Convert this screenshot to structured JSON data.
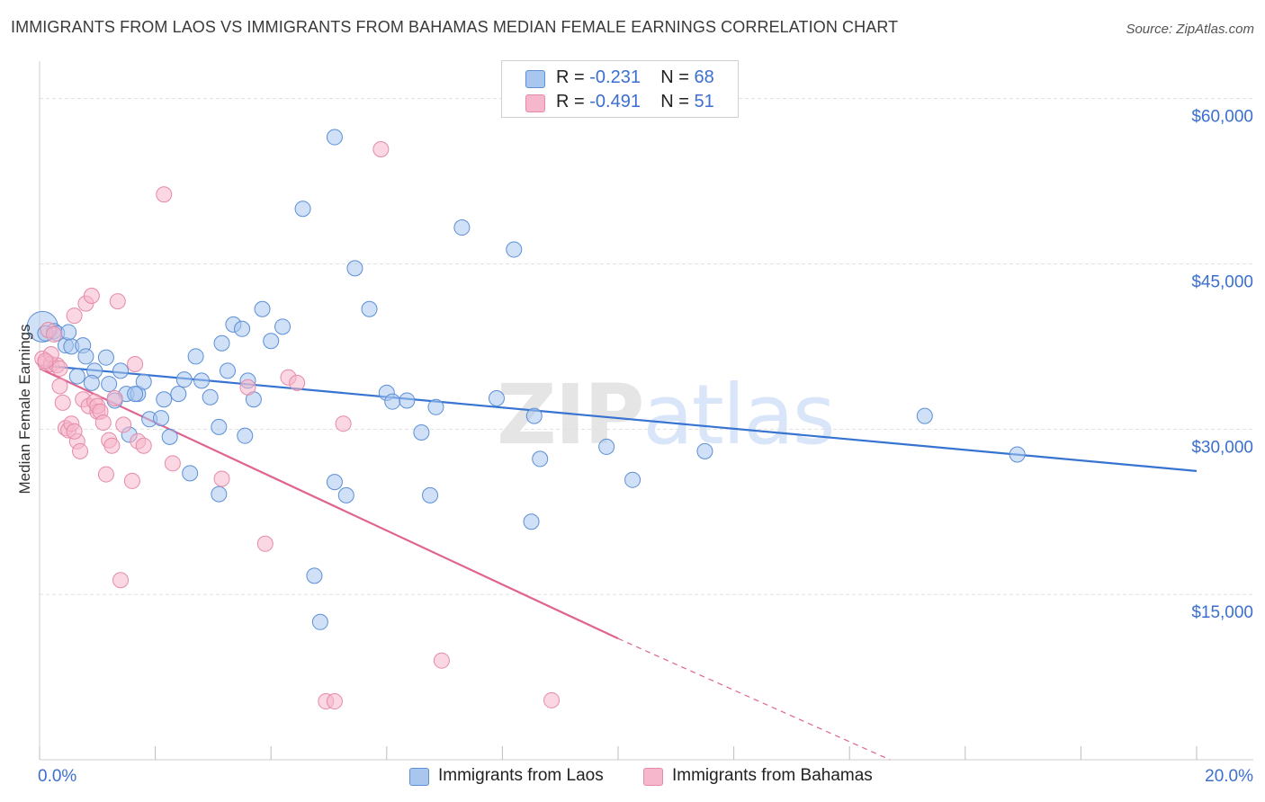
{
  "title": "IMMIGRANTS FROM LAOS VS IMMIGRANTS FROM BAHAMAS MEDIAN FEMALE EARNINGS CORRELATION CHART",
  "source": "Source: ZipAtlas.com",
  "watermark": {
    "zip": "ZIP",
    "atlas": "atlas"
  },
  "legend": {
    "rows": [
      {
        "r_label": "R = ",
        "r_value": "-0.231",
        "n_label": "N = ",
        "n_value": "68"
      },
      {
        "r_label": "R = ",
        "r_value": "-0.491",
        "n_label": "N = ",
        "n_value": "51"
      }
    ]
  },
  "bottom_legend": [
    "Immigrants from Laos",
    "Immigrants from Bahamas"
  ],
  "colors": {
    "laos_fill": "#a9c6ef",
    "laos_stroke": "#5b8fd6",
    "laos_line": "#3773d1",
    "bahamas_fill": "#f6b6cb",
    "bahamas_stroke": "#e58aa8",
    "bahamas_line": "#e0648f",
    "tick_text": "#3b6fcf",
    "grid": "#e1e1e1"
  },
  "chart_data": {
    "type": "scatter",
    "title": "IMMIGRANTS FROM LAOS VS IMMIGRANTS FROM BAHAMAS MEDIAN FEMALE EARNINGS CORRELATION CHART",
    "xlabel": "",
    "ylabel": "Median Female Earnings",
    "xlim": [
      0,
      20
    ],
    "ylim": [
      0,
      62500
    ],
    "x_tick_labels": [
      "0.0%",
      "20.0%"
    ],
    "y_ticks": [
      15000,
      30000,
      45000,
      60000
    ],
    "y_tick_labels": [
      "$15,000",
      "$30,000",
      "$45,000",
      "$60,000"
    ],
    "grid": true,
    "legend_position": "top-center",
    "series": [
      {
        "name": "Immigrants from Laos",
        "points": [
          [
            0.05,
            39300
          ],
          [
            0.25,
            38900
          ],
          [
            0.3,
            38700
          ],
          [
            0.45,
            37600
          ],
          [
            0.55,
            37500
          ],
          [
            0.75,
            37600
          ],
          [
            0.8,
            36600
          ],
          [
            0.65,
            34800
          ],
          [
            0.95,
            35300
          ],
          [
            1.15,
            36500
          ],
          [
            0.9,
            34200
          ],
          [
            1.2,
            34100
          ],
          [
            1.4,
            35300
          ],
          [
            1.5,
            33200
          ],
          [
            1.7,
            33200
          ],
          [
            1.8,
            34300
          ],
          [
            1.3,
            32600
          ],
          [
            1.65,
            33200
          ],
          [
            1.55,
            29500
          ],
          [
            1.9,
            30900
          ],
          [
            2.1,
            31000
          ],
          [
            2.15,
            32700
          ],
          [
            2.25,
            29300
          ],
          [
            2.4,
            33200
          ],
          [
            2.5,
            34500
          ],
          [
            2.6,
            26000
          ],
          [
            2.7,
            36600
          ],
          [
            2.8,
            34400
          ],
          [
            2.95,
            32900
          ],
          [
            3.1,
            30200
          ],
          [
            3.1,
            24100
          ],
          [
            3.15,
            37800
          ],
          [
            3.25,
            35300
          ],
          [
            3.35,
            39500
          ],
          [
            3.5,
            39100
          ],
          [
            3.55,
            29400
          ],
          [
            3.6,
            34400
          ],
          [
            3.7,
            32700
          ],
          [
            3.85,
            40900
          ],
          [
            4.0,
            38000
          ],
          [
            4.2,
            39300
          ],
          [
            4.55,
            50000
          ],
          [
            4.75,
            16700
          ],
          [
            4.85,
            12500
          ],
          [
            5.1,
            56500
          ],
          [
            5.1,
            25200
          ],
          [
            5.3,
            24000
          ],
          [
            5.45,
            44600
          ],
          [
            5.7,
            40900
          ],
          [
            6.0,
            33300
          ],
          [
            6.1,
            32500
          ],
          [
            6.35,
            32600
          ],
          [
            6.6,
            29700
          ],
          [
            6.75,
            24000
          ],
          [
            6.85,
            32000
          ],
          [
            7.3,
            48300
          ],
          [
            7.9,
            32800
          ],
          [
            8.2,
            46300
          ],
          [
            8.5,
            21600
          ],
          [
            8.55,
            31200
          ],
          [
            8.65,
            27300
          ],
          [
            9.8,
            28400
          ],
          [
            10.25,
            25400
          ],
          [
            11.5,
            28000
          ],
          [
            15.3,
            31200
          ],
          [
            16.9,
            27700
          ],
          [
            0.1,
            38700
          ],
          [
            0.5,
            38800
          ]
        ],
        "trend": {
          "x": [
            0,
            20
          ],
          "y": [
            35800,
            26200
          ]
        }
      },
      {
        "name": "Immigrants from Bahamas",
        "points": [
          [
            0.05,
            36400
          ],
          [
            0.1,
            36000
          ],
          [
            0.15,
            39000
          ],
          [
            0.2,
            35900
          ],
          [
            0.25,
            38600
          ],
          [
            0.3,
            35800
          ],
          [
            0.35,
            35500
          ],
          [
            0.35,
            33900
          ],
          [
            0.4,
            32400
          ],
          [
            0.45,
            30100
          ],
          [
            0.5,
            29900
          ],
          [
            0.55,
            30500
          ],
          [
            0.6,
            40300
          ],
          [
            0.65,
            28900
          ],
          [
            0.7,
            28000
          ],
          [
            0.75,
            32700
          ],
          [
            0.8,
            41400
          ],
          [
            0.85,
            32100
          ],
          [
            0.9,
            42100
          ],
          [
            0.95,
            32500
          ],
          [
            1.0,
            31600
          ],
          [
            1.0,
            32100
          ],
          [
            1.05,
            31600
          ],
          [
            1.1,
            30600
          ],
          [
            1.15,
            25900
          ],
          [
            1.2,
            29000
          ],
          [
            1.25,
            28500
          ],
          [
            1.3,
            32800
          ],
          [
            1.35,
            41600
          ],
          [
            1.4,
            16300
          ],
          [
            1.45,
            30400
          ],
          [
            1.6,
            25300
          ],
          [
            1.65,
            35900
          ],
          [
            1.7,
            28900
          ],
          [
            1.8,
            28500
          ],
          [
            2.15,
            51300
          ],
          [
            2.3,
            26900
          ],
          [
            3.15,
            25500
          ],
          [
            3.6,
            33800
          ],
          [
            3.9,
            19600
          ],
          [
            4.3,
            34700
          ],
          [
            4.45,
            34200
          ],
          [
            4.95,
            5300
          ],
          [
            5.1,
            5300
          ],
          [
            5.25,
            30500
          ],
          [
            5.9,
            55400
          ],
          [
            6.95,
            9000
          ],
          [
            8.85,
            5400
          ],
          [
            0.2,
            36800
          ],
          [
            0.1,
            36200
          ],
          [
            0.6,
            29800
          ]
        ],
        "trend": {
          "x": [
            0,
            10
          ],
          "y": [
            35500,
            11000
          ]
        },
        "trend_dashed_extension": {
          "x": [
            10,
            14.7
          ],
          "y": [
            11000,
            0
          ]
        }
      }
    ]
  }
}
